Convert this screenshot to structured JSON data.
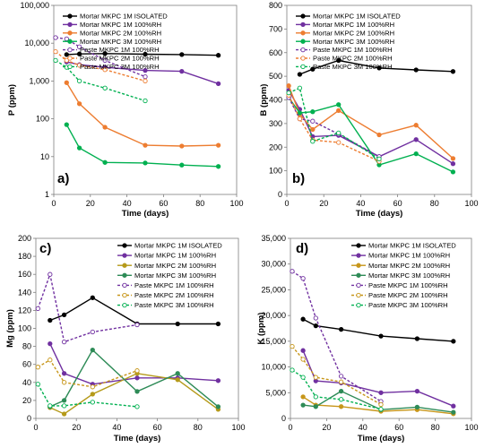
{
  "colors": {
    "mortar_isolated": "#000000",
    "mortar_1m": "#7030a0",
    "mortar_2m": "#ed7d31",
    "mortar_3m": "#00b050",
    "paste_1m": "#7030a0",
    "paste_2m": "#ed7d31",
    "paste_3m": "#00b050",
    "mg_mortar_2m": "#b59a1a",
    "mg_paste_2m": "#c7961a",
    "mg_mortar_3m": "#2e8b57",
    "k_mortar_2m": "#c7961a",
    "k_paste_2m": "#c7961a",
    "k_mortar_3m": "#2e8b57"
  },
  "chart_data": [
    {
      "type": "line",
      "panel_label": "a)",
      "xlabel": "Time (days)",
      "ylabel": "P (ppm)",
      "xlim": [
        0,
        100
      ],
      "ylim": [
        1,
        100000
      ],
      "yscale": "log",
      "xticks": [
        "0",
        "20",
        "40",
        "60",
        "80",
        "100"
      ],
      "yticks": [
        "1",
        "10",
        "100",
        "1,000",
        "10,000",
        "100,000"
      ],
      "legend_position": "top",
      "series": [
        {
          "name": "Mortar MKPC 1M ISOLATED",
          "key": "mortar_isolated",
          "dash": false,
          "x": [
            7,
            14,
            28,
            50,
            70,
            90
          ],
          "y": [
            5000,
            5200,
            5300,
            5100,
            5000,
            4800
          ]
        },
        {
          "name": "Mortar MKPC 1M 100%RH",
          "key": "mortar_1m",
          "dash": false,
          "x": [
            7,
            14,
            28,
            50,
            70,
            90
          ],
          "y": [
            3200,
            2700,
            2300,
            1900,
            1800,
            850
          ]
        },
        {
          "name": "Mortar MKPC 2M 100%RH",
          "key": "mortar_2m",
          "dash": false,
          "x": [
            7,
            14,
            28,
            50,
            70,
            90
          ],
          "y": [
            900,
            250,
            60,
            20,
            19,
            20
          ]
        },
        {
          "name": "Mortar MKPC 3M 100%RH",
          "key": "mortar_3m",
          "dash": false,
          "x": [
            7,
            14,
            28,
            50,
            70,
            90
          ],
          "y": [
            70,
            17,
            7,
            6.8,
            6,
            5.5
          ]
        },
        {
          "name": "Paste MKPC 1M 100%RH",
          "key": "paste_1m",
          "dash": true,
          "x": [
            1,
            7,
            14,
            28,
            50
          ],
          "y": [
            14000,
            13000,
            8000,
            3500,
            1300
          ]
        },
        {
          "name": "Paste MKPC 2M 100%RH",
          "key": "paste_2m",
          "dash": true,
          "x": [
            1,
            7,
            14,
            28,
            50
          ],
          "y": [
            6000,
            3500,
            2600,
            2000,
            1000
          ]
        },
        {
          "name": "Paste MKPC 3M 100%RH",
          "key": "paste_3m",
          "dash": true,
          "x": [
            1,
            7,
            14,
            28,
            50
          ],
          "y": [
            3500,
            2300,
            1000,
            650,
            300
          ]
        }
      ]
    },
    {
      "type": "line",
      "panel_label": "b)",
      "xlabel": "Time (days)",
      "ylabel": "B (ppm)",
      "xlim": [
        0,
        100
      ],
      "ylim": [
        0,
        800
      ],
      "yscale": "linear",
      "xticks": [
        "0",
        "20",
        "40",
        "60",
        "80",
        "100"
      ],
      "yticks": [
        "0",
        "100",
        "200",
        "300",
        "400",
        "500",
        "600",
        "700",
        "800"
      ],
      "legend_position": "top",
      "series": [
        {
          "name": "Mortar MKPC 1M ISOLATED",
          "key": "mortar_isolated",
          "dash": false,
          "x": [
            7,
            14,
            28,
            50,
            70,
            90
          ],
          "y": [
            508,
            530,
            567,
            535,
            527,
            520
          ]
        },
        {
          "name": "Mortar MKPC 1M 100%RH",
          "key": "mortar_1m",
          "dash": false,
          "x": [
            1,
            7,
            14,
            28,
            50,
            70,
            90
          ],
          "y": [
            440,
            360,
            245,
            250,
            160,
            232,
            130
          ]
        },
        {
          "name": "Mortar MKPC 2M 100%RH",
          "key": "mortar_2m",
          "dash": false,
          "x": [
            1,
            7,
            14,
            28,
            50,
            70,
            90
          ],
          "y": [
            460,
            340,
            275,
            355,
            252,
            293,
            152
          ]
        },
        {
          "name": "Mortar MKPC 3M 100%RH",
          "key": "mortar_3m",
          "dash": false,
          "x": [
            1,
            7,
            14,
            28,
            50,
            70,
            90
          ],
          "y": [
            410,
            345,
            350,
            380,
            125,
            172,
            95
          ]
        },
        {
          "name": "Paste MKPC 1M 100%RH",
          "key": "paste_1m",
          "dash": true,
          "x": [
            1,
            7,
            14,
            28,
            50
          ],
          "y": [
            410,
            320,
            310,
            255,
            160
          ]
        },
        {
          "name": "Paste MKPC 2M 100%RH",
          "key": "paste_2m",
          "dash": true,
          "x": [
            1,
            7,
            14,
            28,
            50
          ],
          "y": [
            420,
            320,
            230,
            220,
            140
          ]
        },
        {
          "name": "Paste MKPC 3M 100%RH",
          "key": "paste_3m",
          "dash": true,
          "x": [
            1,
            7,
            14,
            28,
            50
          ],
          "y": [
            430,
            450,
            225,
            260,
            150
          ]
        }
      ]
    },
    {
      "type": "line",
      "panel_label": "c)",
      "xlabel": "Time (days)",
      "ylabel": "Mg (ppm)",
      "xlim": [
        0,
        100
      ],
      "ylim": [
        0,
        200
      ],
      "yscale": "linear",
      "xticks": [
        "0",
        "20",
        "40",
        "60",
        "80",
        "100"
      ],
      "yticks": [
        "0",
        "20",
        "40",
        "60",
        "80",
        "100",
        "120",
        "140",
        "160",
        "180",
        "200"
      ],
      "legend_position": "right",
      "series": [
        {
          "name": "Mortar MKPC 1M ISOLATED",
          "key": "mortar_isolated",
          "dash": false,
          "x": [
            7,
            14,
            28,
            50,
            70,
            90
          ],
          "y": [
            109,
            115,
            134,
            105,
            105,
            105
          ]
        },
        {
          "name": "Mortar MKPC 1M 100%RH",
          "key": "mortar_1m",
          "dash": false,
          "x": [
            7,
            14,
            28,
            50,
            70,
            90
          ],
          "y": [
            83,
            50,
            38,
            45,
            45,
            42
          ]
        },
        {
          "name": "Mortar MKPC 2M 100%RH",
          "key": "mg_mortar_2m",
          "dash": false,
          "x": [
            7,
            14,
            28,
            50,
            70,
            90
          ],
          "y": [
            12,
            5,
            27,
            50,
            43,
            10
          ]
        },
        {
          "name": "Mortar MKPC 3M 100%RH",
          "key": "mg_mortar_3m",
          "dash": false,
          "x": [
            7,
            14,
            28,
            50,
            70,
            90
          ],
          "y": [
            13,
            20,
            76,
            30,
            50,
            13
          ]
        },
        {
          "name": "Paste MKPC 1M 100%RH",
          "key": "paste_1m",
          "dash": true,
          "x": [
            1,
            7,
            14,
            28,
            50
          ],
          "y": [
            122,
            160,
            85,
            96,
            104
          ]
        },
        {
          "name": "Paste MKPC 2M 100%RH",
          "key": "mg_paste_2m",
          "dash": true,
          "x": [
            1,
            7,
            14,
            28,
            50
          ],
          "y": [
            57,
            65,
            40,
            35,
            53
          ]
        },
        {
          "name": "Paste MKPC 3M 100%RH",
          "key": "paste_3m",
          "dash": true,
          "x": [
            1,
            7,
            14,
            28,
            50
          ],
          "y": [
            38,
            14,
            14,
            18,
            13
          ]
        }
      ]
    },
    {
      "type": "line",
      "panel_label": "d)",
      "xlabel": "Time (days)",
      "ylabel": "K (ppm)",
      "xlim": [
        0,
        100
      ],
      "ylim": [
        0,
        35000
      ],
      "yscale": "linear",
      "xticks": [
        "0",
        "20",
        "40",
        "60",
        "80",
        "100"
      ],
      "yticks": [
        "0",
        "5,000",
        "10,000",
        "15,000",
        "20,000",
        "25,000",
        "30,000",
        "35,000"
      ],
      "legend_position": "right",
      "series": [
        {
          "name": "Mortar MKPC 1M ISOLATED",
          "key": "mortar_isolated",
          "dash": false,
          "x": [
            7,
            14,
            28,
            50,
            70,
            90
          ],
          "y": [
            19300,
            18000,
            17300,
            16000,
            15500,
            15000
          ]
        },
        {
          "name": "Mortar MKPC 1M 100%RH",
          "key": "mortar_1m",
          "dash": false,
          "x": [
            7,
            14,
            28,
            50,
            70,
            90
          ],
          "y": [
            13200,
            7300,
            6900,
            5000,
            5300,
            2400
          ]
        },
        {
          "name": "Mortar MKPC 2M 100%RH",
          "key": "k_mortar_2m",
          "dash": false,
          "x": [
            7,
            14,
            28,
            50,
            70,
            90
          ],
          "y": [
            4200,
            2600,
            2300,
            1400,
            1700,
            900
          ]
        },
        {
          "name": "Mortar MKPC 3M 100%RH",
          "key": "k_mortar_3m",
          "dash": false,
          "x": [
            7,
            14,
            28,
            50,
            70,
            90
          ],
          "y": [
            2600,
            2300,
            5300,
            1700,
            2200,
            1200
          ]
        },
        {
          "name": "Paste MKPC 1M 100%RH",
          "key": "paste_1m",
          "dash": true,
          "x": [
            1,
            7,
            14,
            28,
            50
          ],
          "y": [
            28600,
            27200,
            19500,
            8200,
            3300
          ]
        },
        {
          "name": "Paste MKPC 2M 100%RH",
          "key": "k_paste_2m",
          "dash": true,
          "x": [
            1,
            7,
            14,
            28,
            50
          ],
          "y": [
            14000,
            11500,
            8000,
            7100,
            2700
          ]
        },
        {
          "name": "Paste MKPC 3M 100%RH",
          "key": "paste_3m",
          "dash": true,
          "x": [
            1,
            7,
            14,
            28,
            50
          ],
          "y": [
            9400,
            8000,
            4200,
            3700,
            1800
          ]
        }
      ]
    }
  ]
}
